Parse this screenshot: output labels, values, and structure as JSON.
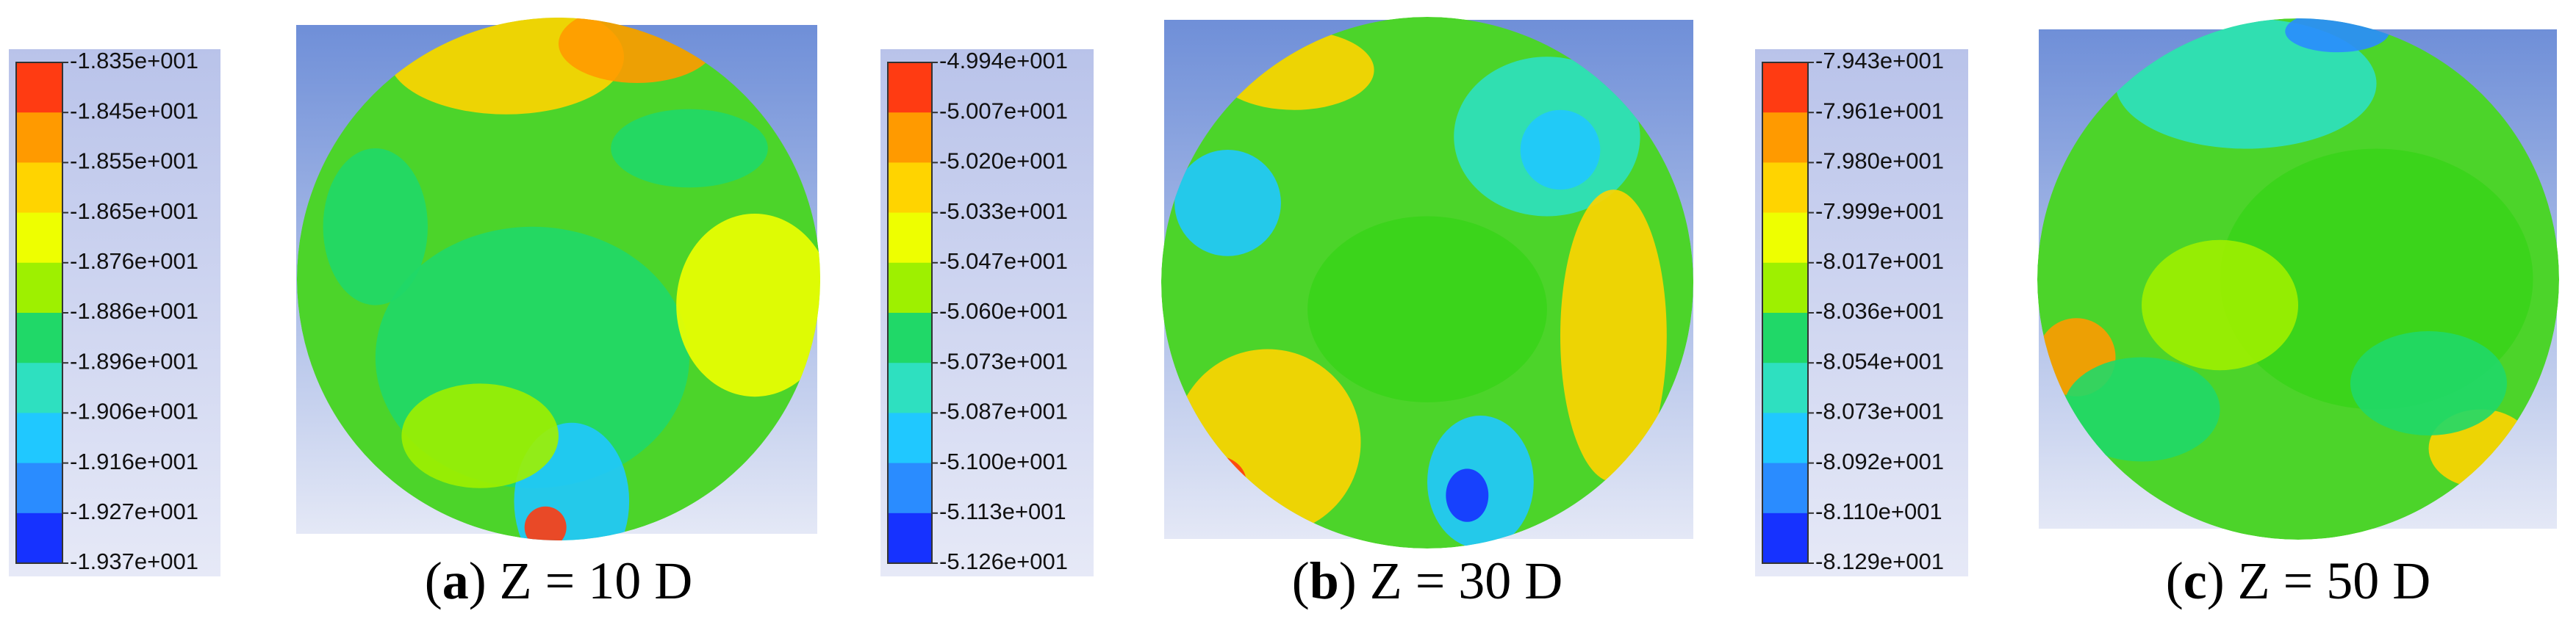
{
  "panels": [
    {
      "caption": {
        "open": "(",
        "letter": "a",
        "rest": ") Z = 10 D"
      },
      "colorbar_labels": [
        "-1.835e+001",
        "-1.845e+001",
        "-1.855e+001",
        "-1.865e+001",
        "-1.876e+001",
        "-1.886e+001",
        "-1.896e+001",
        "-1.906e+001",
        "-1.916e+001",
        "-1.927e+001",
        "-1.937e+001"
      ]
    },
    {
      "caption": {
        "open": "(",
        "letter": "b",
        "rest": ") Z = 30 D"
      },
      "colorbar_labels": [
        "-4.994e+001",
        "-5.007e+001",
        "-5.020e+001",
        "-5.033e+001",
        "-5.047e+001",
        "-5.060e+001",
        "-5.073e+001",
        "-5.087e+001",
        "-5.100e+001",
        "-5.113e+001",
        "-5.126e+001"
      ]
    },
    {
      "caption": {
        "open": "(",
        "letter": "c",
        "rest": ") Z = 50 D"
      },
      "colorbar_labels": [
        "-7.943e+001",
        "-7.961e+001",
        "-7.980e+001",
        "-7.999e+001",
        "-8.017e+001",
        "-8.036e+001",
        "-8.054e+001",
        "-8.073e+001",
        "-8.092e+001",
        "-8.110e+001",
        "-8.129e+001"
      ]
    }
  ]
}
